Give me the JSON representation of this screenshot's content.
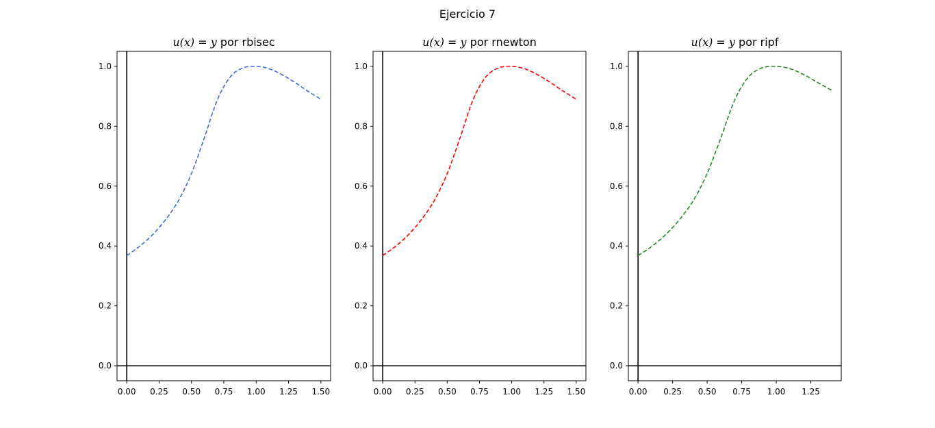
{
  "figure": {
    "suptitle": "Ejercicio 7"
  },
  "chart_data": [
    {
      "type": "line",
      "title": {
        "math": "u(x) = y",
        "text": "por rbisec"
      },
      "xlabel": "",
      "ylabel": "",
      "xlim": [
        -0.075,
        1.575
      ],
      "ylim": [
        -0.05,
        1.05
      ],
      "xticks": [
        "0.00",
        "0.25",
        "0.50",
        "0.75",
        "1.00",
        "1.25",
        "1.50"
      ],
      "yticks": [
        "0.0",
        "0.2",
        "0.4",
        "0.6",
        "0.8",
        "1.0"
      ],
      "grid": false,
      "reference_lines": {
        "x": 0,
        "y": 0
      },
      "series": [
        {
          "color": "#4169e1",
          "linestyle": "dashed",
          "x": [
            0,
            0.1,
            0.2,
            0.3,
            0.4,
            0.5,
            0.6,
            0.7,
            0.8,
            0.9,
            1.0,
            1.1,
            1.2,
            1.3,
            1.4,
            1.5
          ],
          "y": [
            0.368,
            0.399,
            0.438,
            0.488,
            0.552,
            0.642,
            0.762,
            0.888,
            0.965,
            0.995,
            1.0,
            0.992,
            0.972,
            0.946,
            0.917,
            0.89
          ]
        }
      ]
    },
    {
      "type": "line",
      "title": {
        "math": "u(x) = y",
        "text": "por rnewton"
      },
      "xlabel": "",
      "ylabel": "",
      "xlim": [
        -0.075,
        1.575
      ],
      "ylim": [
        -0.05,
        1.05
      ],
      "xticks": [
        "0.00",
        "0.25",
        "0.50",
        "0.75",
        "1.00",
        "1.25",
        "1.50"
      ],
      "yticks": [
        "0.0",
        "0.2",
        "0.4",
        "0.6",
        "0.8",
        "1.0"
      ],
      "grid": false,
      "reference_lines": {
        "x": 0,
        "y": 0
      },
      "series": [
        {
          "color": "#ff0000",
          "linestyle": "dashed",
          "x": [
            0,
            0.1,
            0.2,
            0.3,
            0.4,
            0.5,
            0.6,
            0.7,
            0.8,
            0.9,
            1.0,
            1.1,
            1.2,
            1.3,
            1.4,
            1.5
          ],
          "y": [
            0.368,
            0.399,
            0.438,
            0.488,
            0.552,
            0.642,
            0.762,
            0.888,
            0.965,
            0.995,
            1.0,
            0.992,
            0.972,
            0.946,
            0.917,
            0.89
          ]
        }
      ]
    },
    {
      "type": "line",
      "title": {
        "math": "u(x) = y",
        "text": "por ripf"
      },
      "xlabel": "",
      "ylabel": "",
      "xlim": [
        -0.07,
        1.47
      ],
      "ylim": [
        -0.05,
        1.05
      ],
      "xticks": [
        "0.00",
        "0.25",
        "0.50",
        "0.75",
        "1.00",
        "1.25"
      ],
      "yticks": [
        "0.0",
        "0.2",
        "0.4",
        "0.6",
        "0.8",
        "1.0"
      ],
      "grid": false,
      "reference_lines": {
        "x": 0,
        "y": 0
      },
      "series": [
        {
          "color": "#228b22",
          "linestyle": "dashed",
          "x": [
            0,
            0.1,
            0.2,
            0.3,
            0.4,
            0.5,
            0.6,
            0.7,
            0.8,
            0.9,
            1.0,
            1.1,
            1.2,
            1.3,
            1.4
          ],
          "y": [
            0.368,
            0.399,
            0.438,
            0.488,
            0.552,
            0.642,
            0.762,
            0.888,
            0.965,
            0.995,
            1.0,
            0.992,
            0.972,
            0.946,
            0.92
          ]
        }
      ]
    }
  ]
}
